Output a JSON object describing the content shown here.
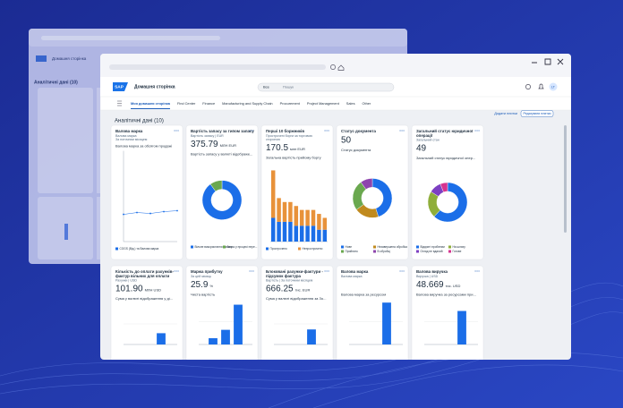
{
  "shell": {
    "logo": "SAP",
    "title": "Домашня сторінка",
    "search_scope": "Все",
    "search_placeholder": "Пошук",
    "avatar": "LT"
  },
  "tabs": [
    "Моя домашня сторінка",
    "Find Center",
    "Finance",
    "Manufacturing and Supply Chain",
    "Procurement",
    "Project Management",
    "Sales",
    "Other"
  ],
  "section": {
    "title": "Аналітичні дані (10)",
    "actions": [
      "Додати плитки",
      "Редагувати плитки"
    ]
  },
  "cards_top": [
    {
      "title": [
        "Валова марка"
      ],
      "subtitle": [
        "Валова марка",
        "За поточним місяцем"
      ],
      "chart_title": "Валова марка за обсягом продажі",
      "chart": {
        "type": "line",
        "values": [
          3,
          3.2,
          3.1,
          3.3,
          3.4
        ],
        "ylim": [
          0,
          10
        ],
        "color": "#1b6ee8"
      },
      "legend": [
        "COGS (Від.) та Валова марка"
      ]
    },
    {
      "title": [
        "Вартість запасу за типом запасу"
      ],
      "subtitle": [
        "Вартість запасу | EUR"
      ],
      "kpi": "375.79",
      "unit": "МЛН EUR",
      "chart_title": "Вартість запасу у валюті відображе...",
      "chart": {
        "type": "donut",
        "values": [
          90,
          10
        ],
        "colors": [
          "#1b6ee8",
          "#6aa84f"
        ]
      },
      "legend": [
        "Вільне використання запасу",
        "Запас у процесі пере..."
      ]
    },
    {
      "title": [
        "Перші 10 боржників"
      ],
      "subtitle": [
        "Прострочені борги за торговою",
        "стороною"
      ],
      "kpi": "170.5",
      "unit": "млн EUR",
      "chart_title": "Загальна вартість прийому боргу",
      "chart": {
        "type": "stacked",
        "ylim": [
          0,
          20
        ],
        "series": [
          {
            "name": "Прострочено",
            "color": "#1b6ee8",
            "values": [
              6,
              5,
              5,
              5,
              4,
              4,
              4,
              4,
              3,
              3
            ]
          },
          {
            "name": "Непрострочено",
            "color": "#e8923a",
            "values": [
              12,
              6,
              5,
              5,
              5,
              4,
              4,
              4,
              4,
              3
            ]
          }
        ]
      }
    },
    {
      "title": [
        "Статус документа"
      ],
      "subtitle": [],
      "kpi": "50",
      "chart_title": "Статус документа",
      "chart": {
        "type": "donut",
        "values": [
          45,
          20,
          25,
          10
        ],
        "colors": [
          "#1b6ee8",
          "#c08a1e",
          "#6aa84f",
          "#8e44ad"
        ]
      },
      "legend": [
        "Нове",
        "Незавершена обробка",
        "Прийнято",
        "В обробці"
      ]
    },
    {
      "title": [
        "Загальний статус юридичної",
        "операції"
      ],
      "subtitle": [
        "Загальний стан"
      ],
      "kpi": "49",
      "chart_title": "Загальний статус юридичної опер...",
      "chart": {
        "type": "donut",
        "values": [
          62,
          22,
          10,
          6
        ],
        "colors": [
          "#1b6ee8",
          "#8fae3a",
          "#7d3fc2",
          "#d6338f"
        ]
      },
      "legend": [
        "Відкриті проблеми",
        "На шляху",
        "Огляд не вдалий",
        "Готове"
      ]
    }
  ],
  "cards_bottom": [
    {
      "title": [
        "Кількість до оплати рахунків-",
        "фактур вільних для оплати"
      ],
      "subtitle": [
        "Рахунки | USD"
      ],
      "kpi": "101.90",
      "unit": "МЛН USD",
      "chart_title": "Сума у валюті відображення у ді...",
      "chart": {
        "values": [
          30
        ],
        "ylim": [
          0,
          100
        ],
        "color": "#1b6ee8"
      }
    },
    {
      "title": [
        "Маржа прибутку"
      ],
      "subtitle": [
        "За цей місяць"
      ],
      "kpi": "25.9",
      "unit": "%",
      "chart_title": "Чиста вартість",
      "chart": {
        "values": [
          15,
          35,
          95
        ],
        "ylim": [
          0,
          100
        ],
        "color": "#1b6ee8"
      }
    },
    {
      "title": [
        "Блоковані рахунки-фактури -",
        "підсумок фактура"
      ],
      "subtitle": [
        "Вартість | За поточним місяцем"
      ],
      "kpi": "666.25",
      "unit": "тис. EUR",
      "chart_title": "Сума у валюті відображення за Зо...",
      "chart": {
        "values": [
          40
        ],
        "ylim": [
          0,
          100
        ],
        "color": "#1b6ee8"
      }
    },
    {
      "title": [
        "Валова марка"
      ],
      "subtitle": [
        "Валова марка"
      ],
      "kpi": "",
      "unit": "",
      "chart_title": "Валова марка за ресурсом",
      "chart": {
        "values": [
          100
        ],
        "ylim": [
          0,
          100
        ],
        "color": "#1b6ee8"
      }
    },
    {
      "title": [
        "Валова виручка"
      ],
      "subtitle": [
        "Виручка | USD"
      ],
      "kpi": "48.669",
      "unit": "тис. USD",
      "chart_title": "Валова виручка за ресурсами при...",
      "chart": {
        "values": [
          80
        ],
        "ylim": [
          0,
          100
        ],
        "color": "#1b6ee8"
      }
    }
  ]
}
